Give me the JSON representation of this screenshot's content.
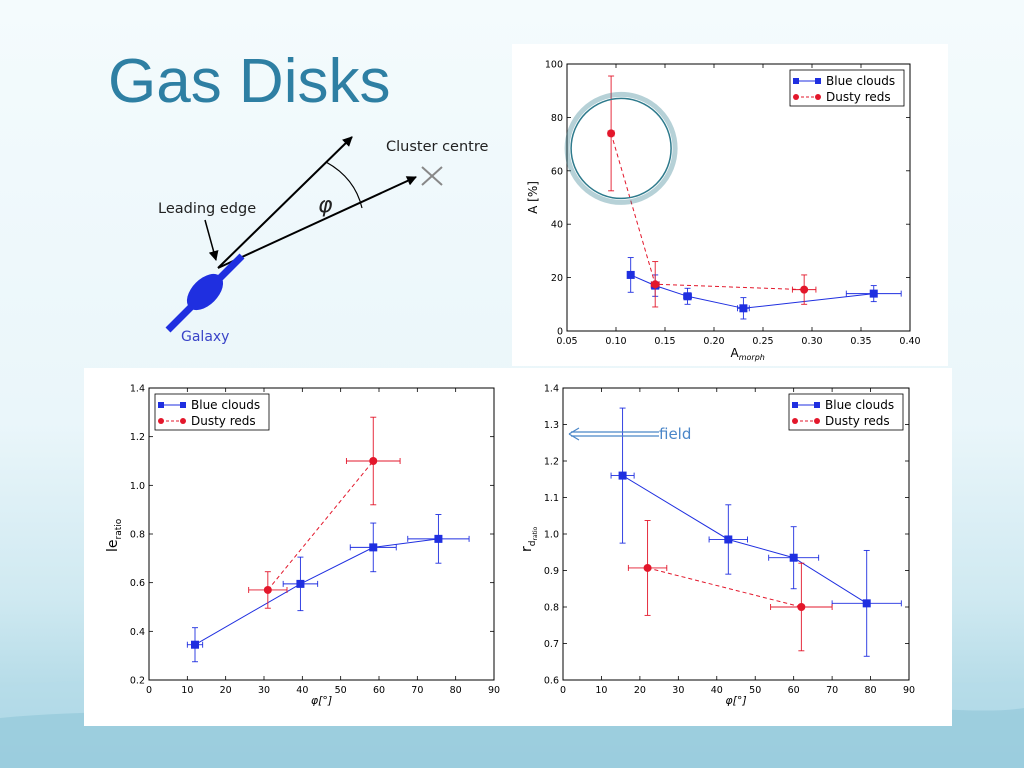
{
  "slide": {
    "title": "Gas Disks"
  },
  "diagram": {
    "label_cluster": "Cluster centre",
    "label_leading": "Leading edge",
    "label_angle": "φ",
    "label_galaxy": "Galaxy"
  },
  "annotation": {
    "field_label": "field"
  },
  "colors": {
    "blue": "#1f2fe0",
    "red": "#e3172b",
    "title": "#2e7fa3",
    "circle": "#2e7a8c"
  },
  "chart_data": [
    {
      "id": "top",
      "type": "scatter",
      "xlabel": "A",
      "xlabel_sub": "morph",
      "ylabel": "A [%]",
      "xlim": [
        0.05,
        0.4
      ],
      "ylim": [
        0,
        100
      ],
      "xticks": [
        0.05,
        0.1,
        0.15,
        0.2,
        0.25,
        0.3,
        0.35,
        0.4
      ],
      "yticks": [
        0,
        20,
        40,
        60,
        80,
        100
      ],
      "xtick_labels": [
        "0.05",
        "0.10",
        "0.15",
        "0.20",
        "0.25",
        "0.30",
        "0.35",
        "0.40"
      ],
      "ytick_labels": [
        "0",
        "20",
        "40",
        "60",
        "80",
        "100"
      ],
      "legend": "top-right",
      "series": [
        {
          "name": "Blue clouds",
          "color": "#1f2fe0",
          "marker": "square",
          "line": "solid",
          "points": [
            {
              "x": 0.115,
              "y": 21,
              "xerr": 0.003,
              "yerr": 6.5
            },
            {
              "x": 0.14,
              "y": 17,
              "xerr": 0.004,
              "yerr": 4
            },
            {
              "x": 0.173,
              "y": 13,
              "xerr": 0.004,
              "yerr": 3
            },
            {
              "x": 0.23,
              "y": 8.5,
              "xerr": 0.006,
              "yerr": 4
            },
            {
              "x": 0.363,
              "y": 14,
              "xerr": 0.028,
              "yerr": 3
            }
          ]
        },
        {
          "name": "Dusty reds",
          "color": "#e3172b",
          "marker": "circle",
          "line": "dashed",
          "points": [
            {
              "x": 0.095,
              "y": 74,
              "xerr": 0.003,
              "yerr": 21.5
            },
            {
              "x": 0.14,
              "y": 17.5,
              "xerr": 0.004,
              "yerr": 8.5
            },
            {
              "x": 0.292,
              "y": 15.5,
              "xerr": 0.012,
              "yerr": 5.5
            }
          ]
        }
      ]
    },
    {
      "id": "left",
      "type": "scatter",
      "xlabel": "φ[°]",
      "ylabel": "le",
      "ylabel_sub": "ratio",
      "xlim": [
        0,
        90
      ],
      "ylim": [
        0.2,
        1.4
      ],
      "xticks": [
        0,
        10,
        20,
        30,
        40,
        50,
        60,
        70,
        80,
        90
      ],
      "yticks": [
        0.2,
        0.4,
        0.6,
        0.8,
        1.0,
        1.2,
        1.4
      ],
      "xtick_labels": [
        "0",
        "10",
        "20",
        "30",
        "40",
        "50",
        "60",
        "70",
        "80",
        "90"
      ],
      "ytick_labels": [
        "0.2",
        "0.4",
        "0.6",
        "0.8",
        "1.0",
        "1.2",
        "1.4"
      ],
      "legend": "top-left",
      "series": [
        {
          "name": "Blue clouds",
          "color": "#1f2fe0",
          "marker": "square",
          "line": "solid",
          "points": [
            {
              "x": 12,
              "y": 0.345,
              "xerr": 2,
              "yerr": 0.07
            },
            {
              "x": 39.5,
              "y": 0.595,
              "xerr": 4.5,
              "yerr": 0.11
            },
            {
              "x": 58.5,
              "y": 0.745,
              "xerr": 6,
              "yerr": 0.1
            },
            {
              "x": 75.5,
              "y": 0.78,
              "xerr": 8,
              "yerr": 0.1
            }
          ]
        },
        {
          "name": "Dusty reds",
          "color": "#e3172b",
          "marker": "circle",
          "line": "dashed",
          "points": [
            {
              "x": 31,
              "y": 0.57,
              "xerr": 5,
              "yerr": 0.075
            },
            {
              "x": 58.5,
              "y": 1.1,
              "xerr": 7,
              "yerr": 0.18
            }
          ]
        }
      ]
    },
    {
      "id": "right",
      "type": "scatter",
      "xlabel": "φ[°]",
      "ylabel": "r",
      "ylabel_sub": "d",
      "ylabel_subsub": "ratio",
      "xlim": [
        0,
        90
      ],
      "ylim": [
        0.6,
        1.4
      ],
      "xticks": [
        0,
        10,
        20,
        30,
        40,
        50,
        60,
        70,
        80,
        90
      ],
      "yticks": [
        0.6,
        0.7,
        0.8,
        0.9,
        1.0,
        1.1,
        1.2,
        1.3,
        1.4
      ],
      "xtick_labels": [
        "0",
        "10",
        "20",
        "30",
        "40",
        "50",
        "60",
        "70",
        "80",
        "90"
      ],
      "ytick_labels": [
        "0.6",
        "0.7",
        "0.8",
        "0.9",
        "1.0",
        "1.1",
        "1.2",
        "1.3",
        "1.4"
      ],
      "legend": "top-right",
      "series": [
        {
          "name": "Blue clouds",
          "color": "#1f2fe0",
          "marker": "square",
          "line": "solid",
          "points": [
            {
              "x": 15.5,
              "y": 1.16,
              "xerr": 3,
              "yerr": 0.185
            },
            {
              "x": 43,
              "y": 0.985,
              "xerr": 5,
              "yerr": 0.095
            },
            {
              "x": 60,
              "y": 0.935,
              "xerr": 6.5,
              "yerr": 0.085
            },
            {
              "x": 79,
              "y": 0.81,
              "xerr": 9,
              "yerr": 0.145
            }
          ]
        },
        {
          "name": "Dusty reds",
          "color": "#e3172b",
          "marker": "circle",
          "line": "dashed",
          "points": [
            {
              "x": 22,
              "y": 0.907,
              "xerr": 5,
              "yerr": 0.13
            },
            {
              "x": 62,
              "y": 0.8,
              "xerr": 8,
              "yerr": 0.12
            }
          ]
        }
      ]
    }
  ]
}
